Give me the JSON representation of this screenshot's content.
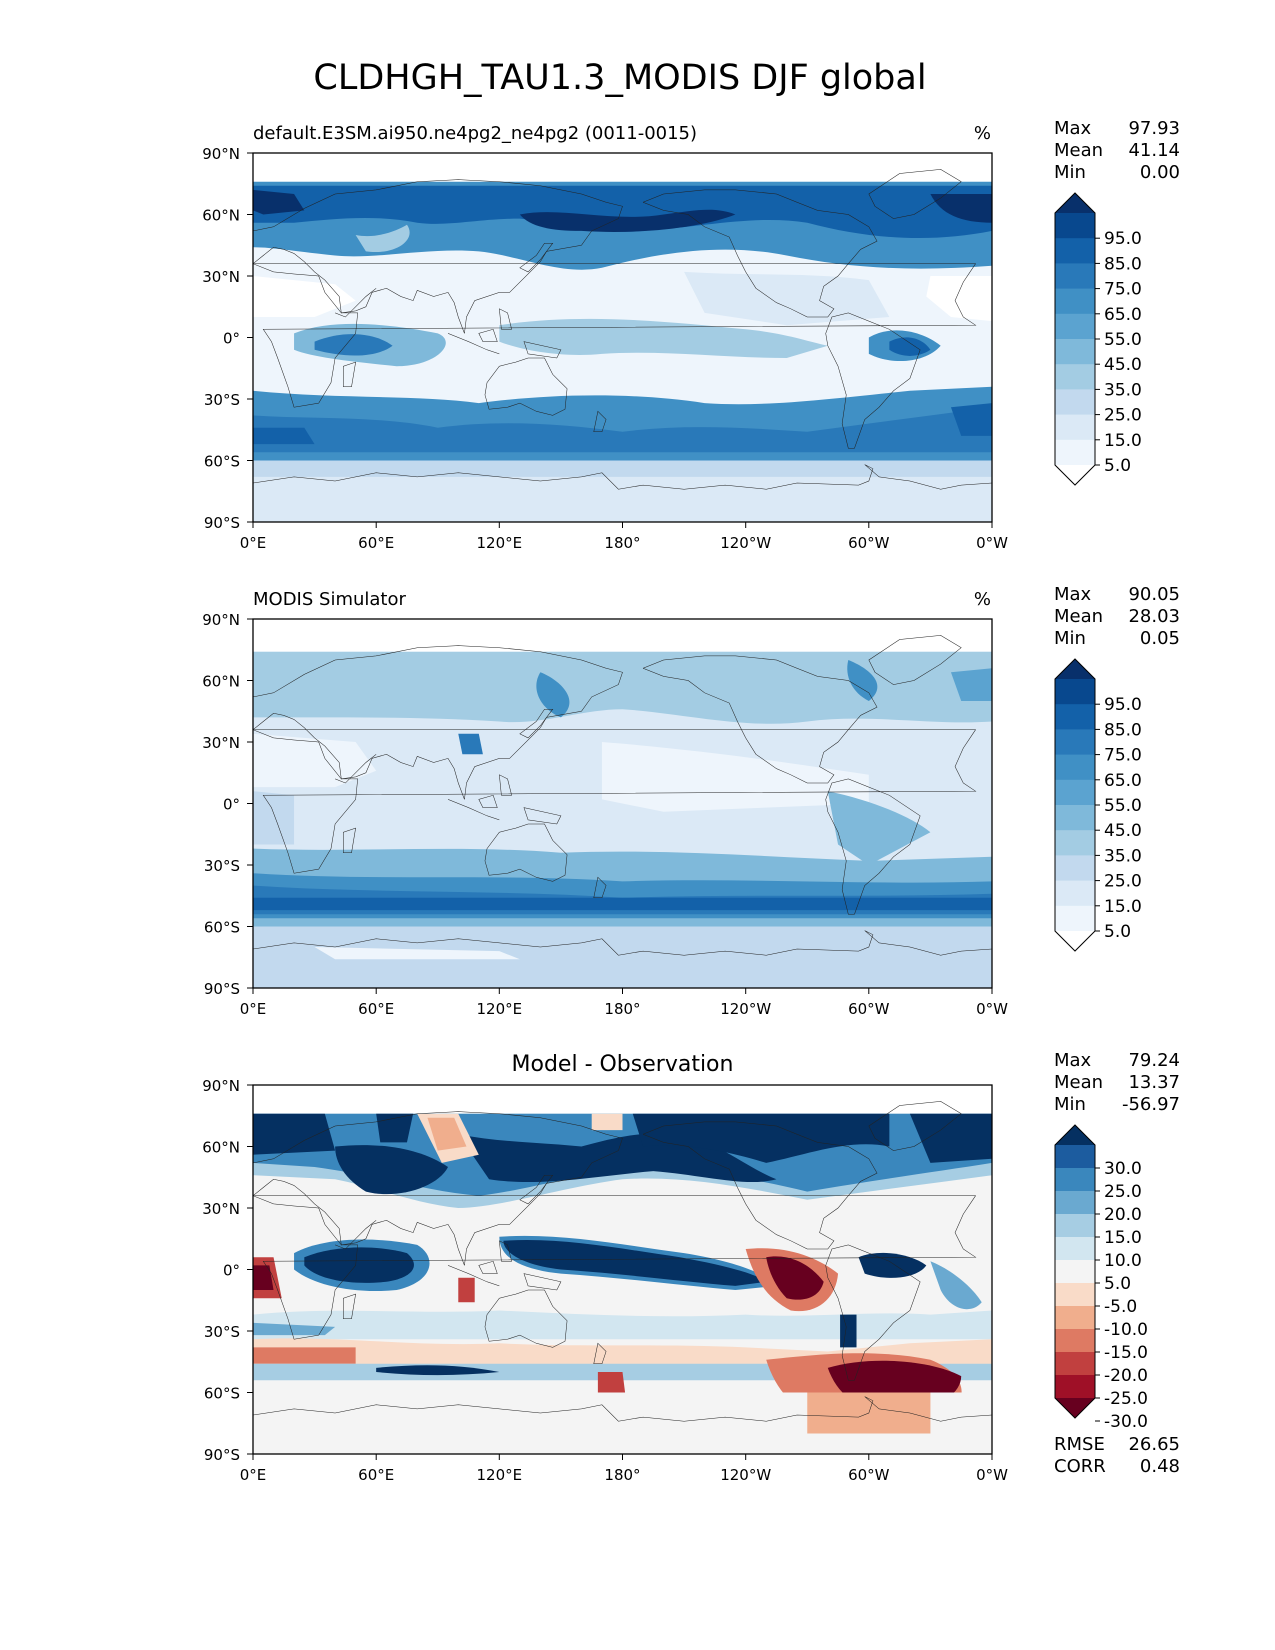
{
  "figure": {
    "title": "CLDHGH_TAU1.3_MODIS DJF global"
  },
  "axes": {
    "lat_ticks": [
      "90°N",
      "60°N",
      "30°N",
      "0°",
      "30°S",
      "60°S",
      "90°S"
    ],
    "lon_ticks": [
      "0°E",
      "60°E",
      "120°E",
      "180°",
      "120°W",
      "60°W",
      "0°W"
    ]
  },
  "panels": [
    {
      "left_title": "default.E3SM.ai950.ne4pg2_ne4pg2 (0011-0015)",
      "center_title": "",
      "units": "%",
      "stats": [
        {
          "label": "Max",
          "value": "97.93"
        },
        {
          "label": "Mean",
          "value": "41.14"
        },
        {
          "label": "Min",
          "value": "0.00"
        }
      ],
      "colorbar": {
        "labels": [
          "95.0",
          "85.0",
          "75.0",
          "65.0",
          "55.0",
          "45.0",
          "35.0",
          "25.0",
          "15.0",
          "5.0"
        ],
        "colors": [
          "#08306b",
          "#08488e",
          "#1361a9",
          "#2979b9",
          "#4090c5",
          "#5ba3d0",
          "#7fb9da",
          "#a3cce3",
          "#c2d9ee",
          "#dbe9f6",
          "#eef5fc",
          "#ffffff"
        ]
      }
    },
    {
      "left_title": "MODIS Simulator",
      "center_title": "",
      "units": "%",
      "stats": [
        {
          "label": "Max",
          "value": "90.05"
        },
        {
          "label": "Mean",
          "value": "28.03"
        },
        {
          "label": "Min",
          "value": "0.05"
        }
      ],
      "colorbar": {
        "labels": [
          "95.0",
          "85.0",
          "75.0",
          "65.0",
          "55.0",
          "45.0",
          "35.0",
          "25.0",
          "15.0",
          "5.0"
        ],
        "colors": [
          "#08306b",
          "#08488e",
          "#1361a9",
          "#2979b9",
          "#4090c5",
          "#5ba3d0",
          "#7fb9da",
          "#a3cce3",
          "#c2d9ee",
          "#dbe9f6",
          "#eef5fc",
          "#ffffff"
        ]
      }
    },
    {
      "left_title": "",
      "center_title": "Model - Observation",
      "units": "",
      "stats": [
        {
          "label": "Max",
          "value": "79.24"
        },
        {
          "label": "Mean",
          "value": "13.37"
        },
        {
          "label": "Min",
          "value": "-56.97"
        }
      ],
      "colorbar": {
        "labels": [
          "30.0",
          "25.0",
          "20.0",
          "15.0",
          "10.0",
          "5.0",
          "-5.0",
          "-10.0",
          "-15.0",
          "-20.0",
          "-25.0",
          "-30.0"
        ],
        "colors": [
          "#053061",
          "#1c5c9f",
          "#3a87bd",
          "#6aa9d0",
          "#a6cde3",
          "#d2e6f0",
          "#f4f4f4",
          "#f9dbc8",
          "#f0ae8d",
          "#de7a63",
          "#c1403f",
          "#9f1027",
          "#67001f"
        ]
      },
      "extra_stats": [
        {
          "label": "RMSE",
          "value": "26.65"
        },
        {
          "label": "CORR",
          "value": "0.48"
        }
      ]
    }
  ]
}
